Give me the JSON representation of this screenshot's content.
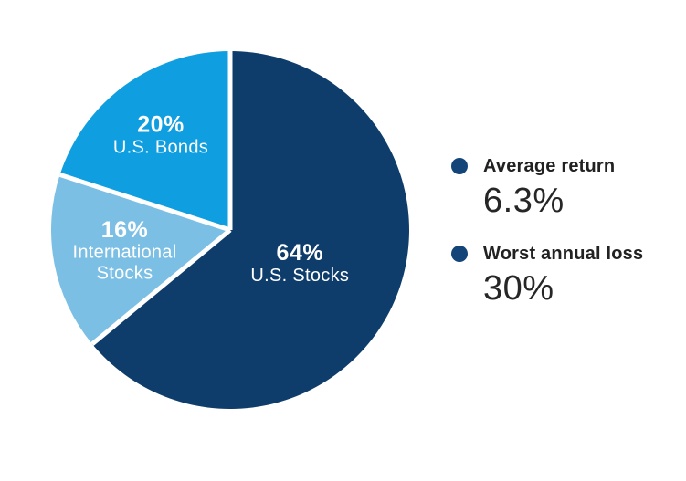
{
  "canvas": {
    "background": "#FFFFFF"
  },
  "chart_data": {
    "type": "pie",
    "start_angle_deg": 0,
    "direction": "clockwise",
    "separator_color": "#FFFFFF",
    "slices": [
      {
        "name": "U.S. Stocks",
        "value_pct": 64,
        "value_label": "64%",
        "label_lines": [
          "U.S. Stocks"
        ],
        "color": "#0E3D6B",
        "label_color": "#FFFFFF"
      },
      {
        "name": "International Stocks",
        "value_pct": 16,
        "value_label": "16%",
        "label_lines": [
          "International",
          "Stocks"
        ],
        "color": "#7CBFE5",
        "label_color": "#FFFFFF"
      },
      {
        "name": "U.S. Bonds",
        "value_pct": 20,
        "value_label": "20%",
        "label_lines": [
          "U.S. Bonds"
        ],
        "color": "#0F9EE0",
        "label_color": "#FFFFFF"
      }
    ],
    "stats": [
      {
        "label": "Average return",
        "value": "6.3%",
        "bullet_color": "#134578"
      },
      {
        "label": "Worst annual loss",
        "value": "30%",
        "bullet_color": "#134578"
      }
    ]
  }
}
